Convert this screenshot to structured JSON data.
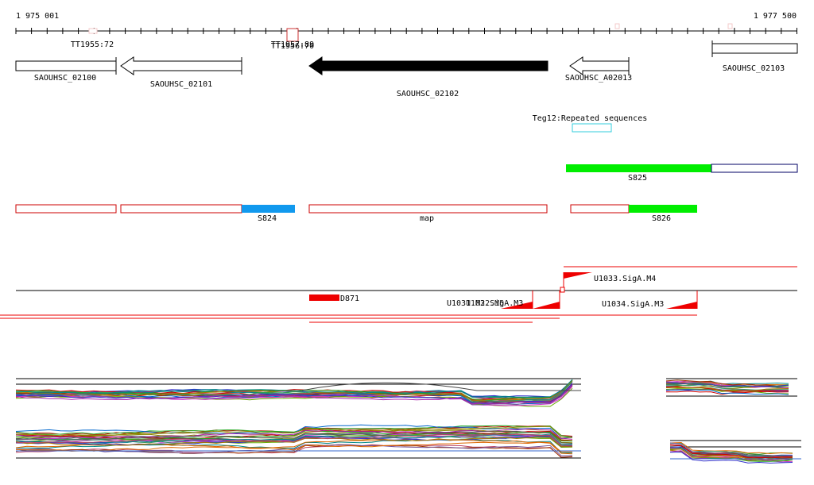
{
  "ruler": {
    "start_label": "1 975 001",
    "end_label": "1 977 500"
  },
  "genes": [
    {
      "name": "SAOUHSC_02100",
      "strand": "+"
    },
    {
      "name": "SAOUHSC_02101",
      "strand": "-"
    },
    {
      "name": "SAOUHSC_02102",
      "strand": "-",
      "selected": true
    },
    {
      "name": "SAOUHSC_A02013",
      "strand": "-"
    },
    {
      "name": "SAOUHSC_02103",
      "strand": "+"
    }
  ],
  "terminators": [
    "TT1955:72",
    "TT1956:70",
    "TT1957:89"
  ],
  "repeats": {
    "label": "Teg12:Repeated sequences"
  },
  "segments": {
    "s825": "S825",
    "s824": "S824",
    "map": "map",
    "s826": "S826"
  },
  "promoters": {
    "u1033": "U1033.SigA.M4",
    "u1034": "U1034.SigA.M3",
    "u1031": "U1031.M2.SigA.M3",
    "u1032": "U1032.M5",
    "d871": "D871"
  },
  "colors": {
    "gene_selected": "#000000",
    "repeat": "#33ccdd",
    "segment_green": "#00ee00",
    "segment_blue": "#1199ee",
    "segment_outline": "#cc0000",
    "promoter": "#ee0000",
    "s825_outline": "#000066"
  }
}
